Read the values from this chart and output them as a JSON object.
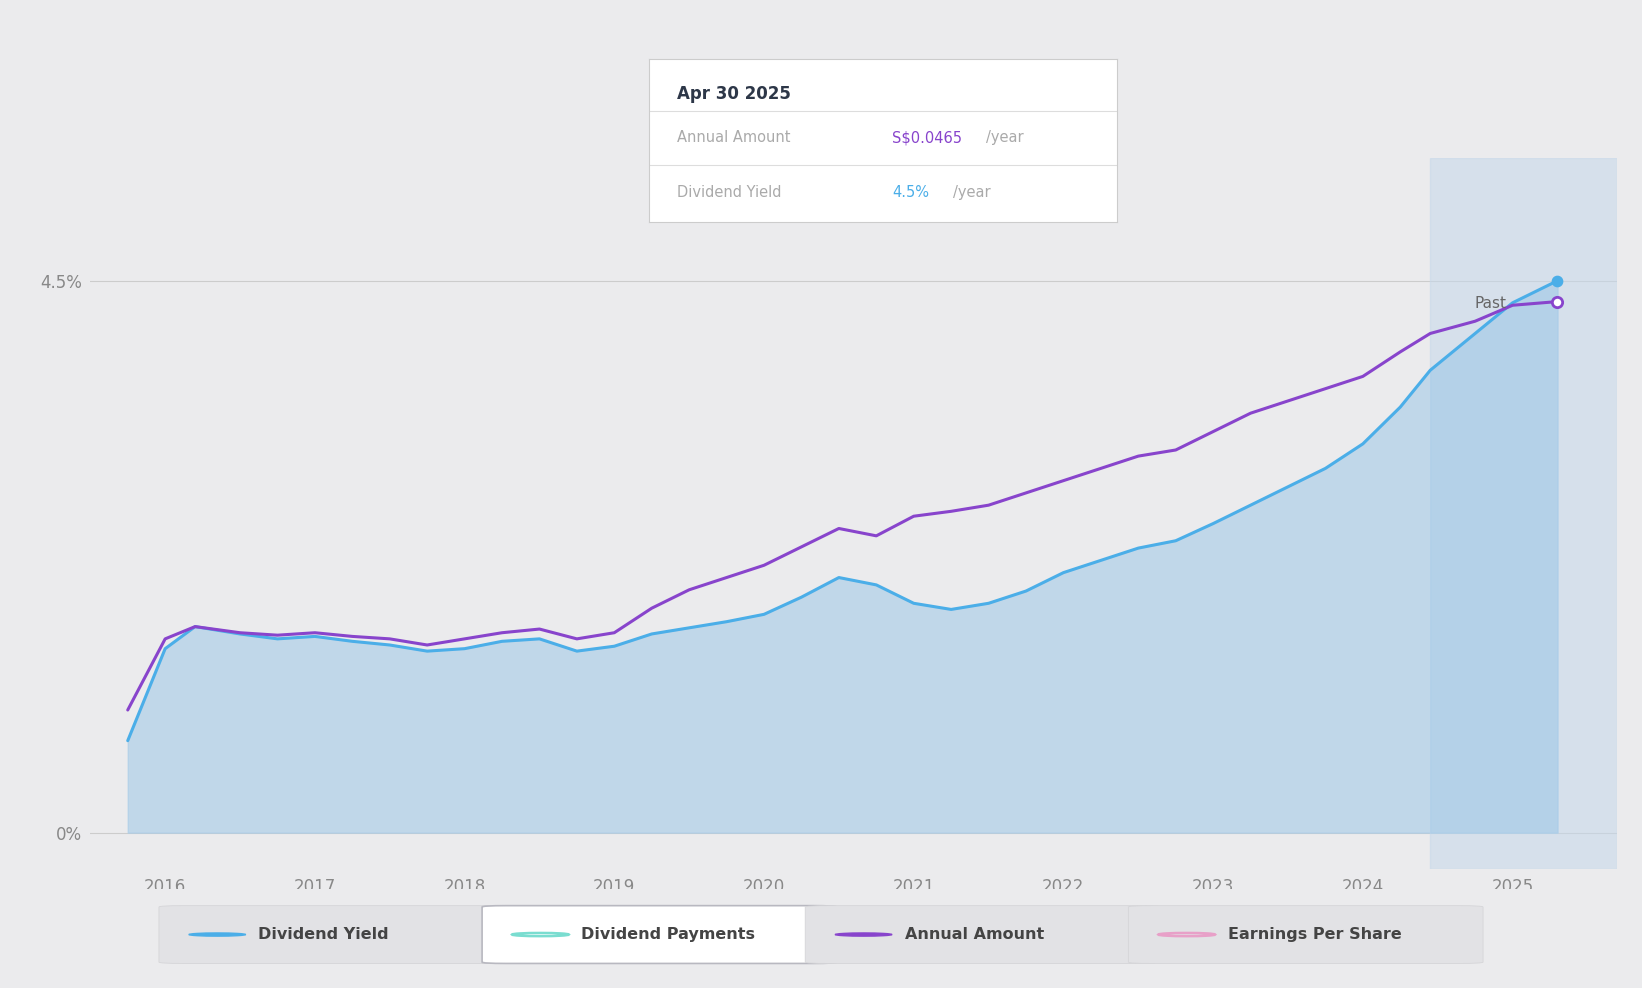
{
  "bg_color": "#ebebed",
  "plot_bg_color": "#ebebed",
  "x_min": 2015.5,
  "x_max": 2025.7,
  "y_min": -0.3,
  "y_max": 5.5,
  "past_shade_start": 2024.45,
  "ytick_vals": [
    0,
    4.5
  ],
  "ytick_labels": [
    "0%",
    "4.5%"
  ],
  "xlabel_years": [
    2016,
    2017,
    2018,
    2019,
    2020,
    2021,
    2022,
    2023,
    2024,
    2025
  ],
  "dividend_yield_x": [
    2015.75,
    2016.0,
    2016.2,
    2016.5,
    2016.75,
    2017.0,
    2017.25,
    2017.5,
    2017.75,
    2018.0,
    2018.25,
    2018.5,
    2018.75,
    2019.0,
    2019.25,
    2019.5,
    2019.75,
    2020.0,
    2020.25,
    2020.5,
    2020.75,
    2021.0,
    2021.25,
    2021.5,
    2021.75,
    2022.0,
    2022.25,
    2022.5,
    2022.75,
    2023.0,
    2023.25,
    2023.5,
    2023.75,
    2024.0,
    2024.25,
    2024.45,
    2024.75,
    2025.0,
    2025.3
  ],
  "dividend_yield_y": [
    0.75,
    1.5,
    1.68,
    1.62,
    1.58,
    1.6,
    1.56,
    1.53,
    1.48,
    1.5,
    1.56,
    1.58,
    1.48,
    1.52,
    1.62,
    1.67,
    1.72,
    1.78,
    1.92,
    2.08,
    2.02,
    1.87,
    1.82,
    1.87,
    1.97,
    2.12,
    2.22,
    2.32,
    2.38,
    2.52,
    2.67,
    2.82,
    2.97,
    3.17,
    3.47,
    3.77,
    4.07,
    4.32,
    4.5
  ],
  "annual_amount_x": [
    2015.75,
    2016.0,
    2016.2,
    2016.5,
    2016.75,
    2017.0,
    2017.25,
    2017.5,
    2017.75,
    2018.0,
    2018.25,
    2018.5,
    2018.75,
    2019.0,
    2019.25,
    2019.5,
    2019.75,
    2020.0,
    2020.25,
    2020.5,
    2020.75,
    2021.0,
    2021.25,
    2021.5,
    2021.75,
    2022.0,
    2022.25,
    2022.5,
    2022.75,
    2023.0,
    2023.25,
    2023.5,
    2023.75,
    2024.0,
    2024.25,
    2024.45,
    2024.75,
    2025.0,
    2025.3
  ],
  "annual_amount_y": [
    1.0,
    1.58,
    1.68,
    1.63,
    1.61,
    1.63,
    1.6,
    1.58,
    1.53,
    1.58,
    1.63,
    1.66,
    1.58,
    1.63,
    1.83,
    1.98,
    2.08,
    2.18,
    2.33,
    2.48,
    2.42,
    2.58,
    2.62,
    2.67,
    2.77,
    2.87,
    2.97,
    3.07,
    3.12,
    3.27,
    3.42,
    3.52,
    3.62,
    3.72,
    3.92,
    4.07,
    4.17,
    4.3,
    4.33
  ],
  "fill_color": "#aacde8",
  "line_yield_color": "#4baee8",
  "line_annual_color": "#8844cc",
  "past_shade_color": "#c5d8ea",
  "tooltip_title": "Apr 30 2025",
  "tooltip_annual_label": "Annual Amount",
  "tooltip_annual_value": "S$0.0465",
  "tooltip_annual_suffix": "/year",
  "tooltip_yield_label": "Dividend Yield",
  "tooltip_yield_value": "4.5%",
  "tooltip_yield_suffix": "/year",
  "tooltip_annual_color": "#8844cc",
  "tooltip_yield_color": "#4baee8",
  "past_label": "Past",
  "legend_items": [
    {
      "label": "Dividend Yield",
      "color": "#4baee8",
      "filled": true
    },
    {
      "label": "Dividend Payments",
      "color": "#7addd0",
      "filled": false
    },
    {
      "label": "Annual Amount",
      "color": "#8844cc",
      "filled": true
    },
    {
      "label": "Earnings Per Share",
      "color": "#e8a0c8",
      "filled": false
    }
  ]
}
